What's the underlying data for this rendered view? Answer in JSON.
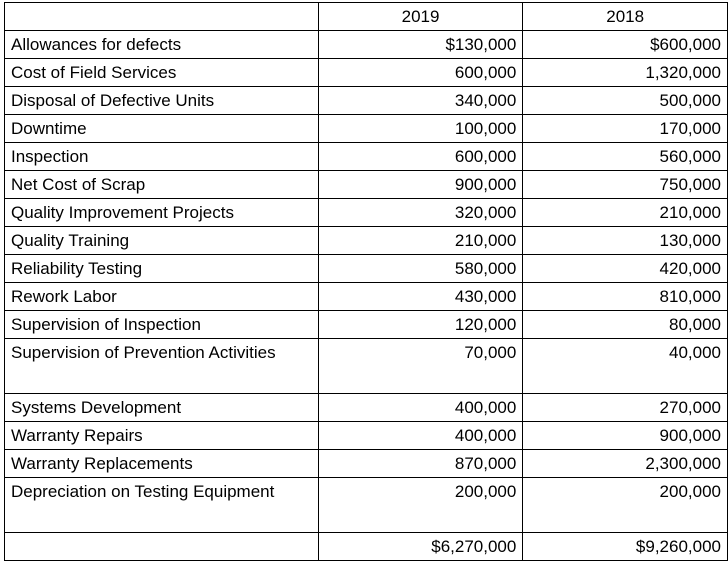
{
  "table": {
    "headers": [
      "",
      "2019",
      "2018"
    ],
    "rows": [
      {
        "label": "Allowances for defects",
        "y2019": "$130,000",
        "y2018": "$600,000"
      },
      {
        "label": "Cost of Field Services",
        "y2019": "600,000",
        "y2018": "1,320,000"
      },
      {
        "label": "Disposal of Defective Units",
        "y2019": "340,000",
        "y2018": "500,000"
      },
      {
        "label": "Downtime",
        "y2019": "100,000",
        "y2018": "170,000"
      },
      {
        "label": "Inspection",
        "y2019": "600,000",
        "y2018": "560,000"
      },
      {
        "label": "Net Cost of Scrap",
        "y2019": "900,000",
        "y2018": "750,000"
      },
      {
        "label": "Quality Improvement Projects",
        "y2019": "320,000",
        "y2018": "210,000"
      },
      {
        "label": "Quality Training",
        "y2019": "210,000",
        "y2018": "130,000"
      },
      {
        "label": "Reliability Testing",
        "y2019": "580,000",
        "y2018": "420,000"
      },
      {
        "label": "Rework Labor",
        "y2019": "430,000",
        "y2018": "810,000"
      },
      {
        "label": "Supervision of Inspection",
        "y2019": "120,000",
        "y2018": "80,000"
      },
      {
        "label": "Supervision of Prevention Activities",
        "y2019": "70,000",
        "y2018": "40,000"
      },
      {
        "label": "Systems Development",
        "y2019": "400,000",
        "y2018": "270,000"
      },
      {
        "label": "Warranty Repairs",
        "y2019": "400,000",
        "y2018": "900,000"
      },
      {
        "label": "Warranty Replacements",
        "y2019": "870,000",
        "y2018": "2,300,000"
      },
      {
        "label": "Depreciation on Testing Equipment",
        "y2019": "200,000",
        "y2018": "200,000"
      }
    ],
    "total": {
      "label": "",
      "y2019": "$6,270,000",
      "y2018": "$9,260,000"
    }
  }
}
